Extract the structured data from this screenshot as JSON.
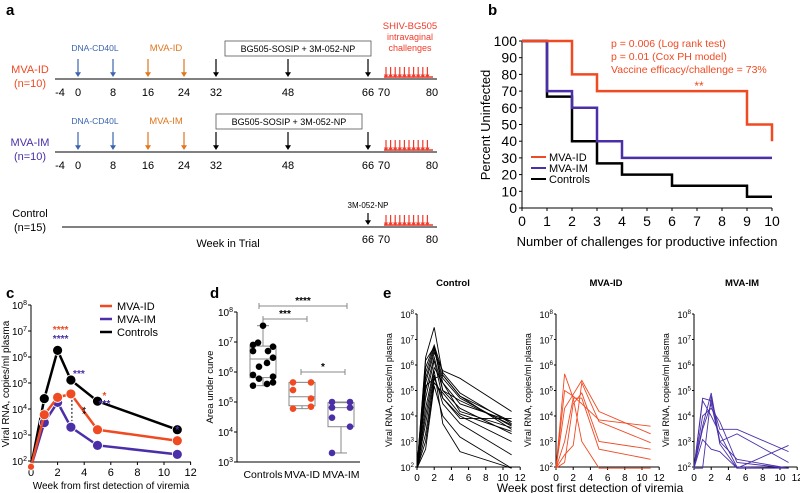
{
  "panel_labels": {
    "a": "a",
    "b": "b",
    "c": "c",
    "d": "d",
    "e": "e"
  },
  "colors": {
    "mva_id": "#f04a23",
    "mva_im": "#4a2fa8",
    "control": "#000000",
    "dna": "#3a64b0",
    "mva_arrow": "#e0761e",
    "challenge": "#f03a2a"
  },
  "panel_a": {
    "groups": [
      {
        "name": "MVA-ID",
        "n": "(n=10)",
        "color_key": "mva_id",
        "dna_label": "DNA-CD40L",
        "mva_label": "MVA-ID",
        "box_label": "BG505-SOSIP + 3M-052-NP",
        "challenge_label": [
          "SHIV-BG505",
          "intravaginal",
          "challenges"
        ]
      },
      {
        "name": "MVA-IM",
        "n": "(n=10)",
        "color_key": "mva_im",
        "dna_label": "DNA-CD40L",
        "mva_label": "MVA-IM",
        "box_label": "BG505-SOSIP + 3M-052-NP",
        "challenge_label": null
      },
      {
        "name": "Control",
        "n": "(n=15)",
        "color_key": "control",
        "boost_label": "3M-052-NP"
      }
    ],
    "week_ticks": [
      "-4",
      "0",
      "8",
      "16",
      "24",
      "32",
      "48",
      "66",
      "70",
      "80"
    ],
    "control_ticks": [
      "66",
      "70",
      "80"
    ],
    "dna_weeks": [
      0,
      8
    ],
    "mva_weeks": [
      16,
      24
    ],
    "protein_weeks": [
      32,
      48,
      66
    ],
    "challenge_weeks": [
      70,
      71,
      72,
      73,
      74,
      75,
      76,
      77,
      78,
      79,
      80
    ],
    "xlabel": "Week in Trial"
  },
  "chart_data": [
    {
      "id": "b",
      "type": "line",
      "step": true,
      "ylabel": "Percent Uninfected",
      "xlabel": "Number of challenges for productive infection",
      "xlim": [
        0,
        10
      ],
      "ylim": [
        0,
        100
      ],
      "xticks": [
        "0",
        "1",
        "2",
        "3",
        "4",
        "5",
        "6",
        "7",
        "8",
        "9",
        "10"
      ],
      "yticks": [
        "0",
        "10",
        "20",
        "30",
        "40",
        "50",
        "60",
        "70",
        "80",
        "90",
        "100"
      ],
      "annotations": [
        "p = 0.006 (Log rank test)",
        "p = 0.01 (Cox PH model)",
        "Vaccine efficacy/challenge = 73%",
        "**"
      ],
      "legend_position": "bottom-left",
      "series": [
        {
          "name": "MVA-ID",
          "color_key": "mva_id",
          "x": [
            0,
            2,
            2,
            3,
            3,
            9,
            9,
            10,
            10
          ],
          "y": [
            100,
            100,
            80,
            80,
            70,
            70,
            50,
            50,
            40
          ]
        },
        {
          "name": "MVA-IM",
          "color_key": "mva_im",
          "x": [
            0,
            1,
            1,
            2,
            2,
            3,
            3,
            4,
            4,
            10
          ],
          "y": [
            100,
            100,
            70,
            70,
            60,
            60,
            40,
            40,
            30,
            30
          ]
        },
        {
          "name": "Controls",
          "color_key": "control",
          "x": [
            0,
            1,
            1,
            2,
            2,
            3,
            3,
            4,
            4,
            6,
            6,
            9,
            9,
            10
          ],
          "y": [
            100,
            100,
            66.7,
            66.7,
            40,
            40,
            26.7,
            26.7,
            20,
            20,
            13.3,
            13.3,
            6.7,
            6.7
          ]
        }
      ]
    },
    {
      "id": "c",
      "type": "line",
      "yscale": "log",
      "ylabel": "Viral RNA, copies/ml plasma",
      "xlabel": "Week from first detection of viremia",
      "xlim": [
        0,
        12
      ],
      "ylim": [
        100,
        100000000
      ],
      "xticks": [
        "0",
        "2",
        "4",
        "6",
        "8",
        "10",
        "12"
      ],
      "yticks_exp": [
        "2",
        "3",
        "4",
        "5",
        "6",
        "7",
        "8"
      ],
      "legend_position": "top-right",
      "series": [
        {
          "name": "MVA-ID",
          "color_key": "mva_id",
          "x": [
            0,
            1,
            2,
            3,
            5,
            11
          ],
          "y": [
            60,
            6000,
            28000,
            38000,
            1600,
            600
          ]
        },
        {
          "name": "MVA-IM",
          "color_key": "mva_im",
          "x": [
            0,
            1,
            2,
            3,
            5,
            11
          ],
          "y": [
            60,
            3000,
            18000,
            2000,
            400,
            180
          ]
        },
        {
          "name": "Controls",
          "color_key": "control",
          "x": [
            0,
            1,
            2,
            3,
            5,
            11
          ],
          "y": [
            60,
            25000,
            1800000,
            130000,
            20000,
            1600
          ]
        }
      ],
      "significance": [
        {
          "x": 2,
          "text": "****",
          "color_key": "mva_id",
          "row": 0
        },
        {
          "x": 2,
          "text": "****",
          "color_key": "mva_im",
          "row": 1
        },
        {
          "x": 3,
          "text": "***",
          "color_key": "mva_im",
          "row": 0
        },
        {
          "x": 5,
          "text": "*",
          "color_key": "mva_id",
          "row": 0
        },
        {
          "x": 5,
          "text": "***",
          "color_key": "mva_im",
          "row": 1
        },
        {
          "x": 11,
          "text": "*",
          "color_key": "mva_im",
          "row": 0
        },
        {
          "x": 3,
          "text": "**",
          "color_key": "control",
          "row": 2
        }
      ]
    },
    {
      "id": "d",
      "type": "scatter",
      "subtype": "box",
      "yscale": "log",
      "ylabel": "Area under curve",
      "categories": [
        "Controls",
        "MVA-ID",
        "MVA-IM"
      ],
      "ylim": [
        1000,
        100000000
      ],
      "yticks_exp": [
        "3",
        "4",
        "5",
        "6",
        "7",
        "8"
      ],
      "groups": [
        {
          "name": "Controls",
          "color_key": "control",
          "values": [
            35000000,
            8000000,
            7000000,
            9500000,
            5000000,
            5000000,
            3000000,
            1500000,
            2000000,
            800000,
            700000,
            600000,
            400000,
            350000,
            450000
          ],
          "box": {
            "min": 350000,
            "q1": 650000,
            "median": 2700000,
            "q3": 7300000,
            "max": 35000000
          }
        },
        {
          "name": "MVA-ID",
          "color_key": "mva_id",
          "values": [
            450000,
            450000,
            250000,
            130000,
            60000,
            70000
          ],
          "box": {
            "min": 60000,
            "q1": 75000,
            "median": 150000,
            "q3": 450000,
            "max": 450000
          }
        },
        {
          "name": "MVA-IM",
          "color_key": "mva_im",
          "values": [
            100000,
            100000,
            65000,
            65000,
            30000,
            15000,
            2000
          ],
          "box": {
            "min": 2000,
            "q1": 15000,
            "median": 65000,
            "q3": 95000,
            "max": 100000
          }
        }
      ],
      "brackets": [
        {
          "from": "Controls",
          "to": "MVA-IM",
          "text": "****"
        },
        {
          "from": "Controls",
          "to": "MVA-ID",
          "text": "***"
        },
        {
          "from": "MVA-ID",
          "to": "MVA-IM",
          "text": "*"
        }
      ]
    },
    {
      "id": "e",
      "type": "line",
      "yscale": "log",
      "ylabel": "Viral RNA, copies/ml plasma",
      "xlabel": "Week post first detection of viremia",
      "xlim": [
        0,
        12
      ],
      "ylim": [
        100,
        100000000
      ],
      "xticks": [
        "0",
        "2",
        "4",
        "6",
        "8",
        "10",
        "12"
      ],
      "yticks_exp": [
        "2",
        "3",
        "4",
        "5",
        "6",
        "7",
        "8"
      ],
      "panels": [
        {
          "title": "Control",
          "color_key": "control",
          "series": [
            {
              "x": [
                0,
                1,
                2,
                3,
                5,
                11
              ],
              "y": [
                60,
                2000000,
                30000000,
                400000,
                60000,
                3000
              ]
            },
            {
              "x": [
                0,
                1,
                2,
                3,
                5,
                11
              ],
              "y": [
                60,
                800000,
                6000000,
                500000,
                80000,
                5000
              ]
            },
            {
              "x": [
                0,
                1,
                2,
                3,
                5,
                11
              ],
              "y": [
                60,
                500000,
                5000000,
                300000,
                50000,
                4000
              ]
            },
            {
              "x": [
                0,
                1,
                2,
                3,
                5,
                11
              ],
              "y": [
                60,
                300000,
                4000000,
                200000,
                30000,
                6000
              ]
            },
            {
              "x": [
                0,
                1,
                2,
                3,
                5,
                11
              ],
              "y": [
                60,
                200000,
                3000000,
                600000,
                300000,
                15000
              ]
            },
            {
              "x": [
                0,
                1,
                2,
                3,
                5,
                11
              ],
              "y": [
                60,
                100000,
                2000000,
                100000,
                20000,
                2000
              ]
            },
            {
              "x": [
                0,
                1,
                2,
                3,
                5,
                11
              ],
              "y": [
                60,
                50000,
                1500000,
                50000,
                10000,
                1000
              ]
            },
            {
              "x": [
                0,
                1,
                2,
                3,
                5,
                11
              ],
              "y": [
                60,
                20000,
                800000,
                200000,
                15000,
                3500
              ]
            },
            {
              "x": [
                0,
                1,
                2,
                3,
                5,
                11
              ],
              "y": [
                60,
                10000,
                600000,
                5000,
                400,
                60
              ]
            },
            {
              "x": [
                0,
                1,
                2,
                3,
                5,
                11
              ],
              "y": [
                60,
                5000,
                400000,
                30000,
                5000,
                300
              ]
            },
            {
              "x": [
                0,
                1,
                2,
                3,
                5,
                11
              ],
              "y": [
                60,
                2000,
                300000,
                50000,
                8000,
                8000
              ]
            },
            {
              "x": [
                0,
                1,
                2,
                3,
                5,
                11
              ],
              "y": [
                60,
                1000,
                200000,
                80000,
                12000,
                2500
              ]
            },
            {
              "x": [
                0,
                1,
                2,
                3,
                5,
                11
              ],
              "y": [
                60,
                500,
                150000,
                10000,
                1500,
                70
              ]
            },
            {
              "x": [
                0,
                1,
                2,
                3,
                5,
                11
              ],
              "y": [
                60,
                150000,
                300000,
                400000,
                60000,
                6000
              ]
            },
            {
              "x": [
                0,
                1,
                2,
                3,
                5,
                11
              ],
              "y": [
                60,
                1500000,
                5000000,
                100000,
                40000,
                4500
              ]
            }
          ]
        },
        {
          "title": "MVA-ID",
          "color_key": "mva_id",
          "series": [
            {
              "x": [
                0,
                1,
                2,
                3,
                5,
                11
              ],
              "y": [
                60,
                450000,
                50000,
                1000,
                60,
                60
              ]
            },
            {
              "x": [
                0,
                1,
                2,
                3,
                5,
                11
              ],
              "y": [
                60,
                100000,
                60000,
                30000,
                7000,
                4000
              ]
            },
            {
              "x": [
                0,
                1,
                2,
                3,
                5,
                11
              ],
              "y": [
                60,
                20000,
                70000,
                250000,
                15000,
                2000
              ]
            },
            {
              "x": [
                0,
                1,
                2,
                3,
                5,
                11
              ],
              "y": [
                60,
                300,
                700,
                200000,
                6000,
                900
              ]
            },
            {
              "x": [
                0,
                1,
                2,
                3,
                5,
                11
              ],
              "y": [
                60,
                150,
                30000,
                80000,
                1000,
                500
              ]
            },
            {
              "x": [
                0,
                1,
                2,
                3,
                5,
                11
              ],
              "y": [
                60,
                1000,
                50000,
                50000,
                500,
                200
              ]
            }
          ]
        },
        {
          "title": "MVA-IM",
          "color_key": "mva_im",
          "series": [
            {
              "x": [
                0,
                1,
                2,
                3,
                5,
                11
              ],
              "y": [
                60,
                50000,
                40000,
                3000,
                3000,
                400
              ]
            },
            {
              "x": [
                0,
                1,
                2,
                3,
                5,
                11
              ],
              "y": [
                60,
                4000,
                80000,
                1000,
                2000,
                150
              ]
            },
            {
              "x": [
                0,
                1,
                2,
                3,
                5,
                11
              ],
              "y": [
                60,
                1200,
                500,
                400,
                60,
                60
              ]
            },
            {
              "x": [
                0,
                1,
                2,
                3,
                5,
                11
              ],
              "y": [
                60,
                60,
                60000,
                800,
                70,
                700
              ]
            },
            {
              "x": [
                0,
                1,
                2,
                3,
                5,
                11
              ],
              "y": [
                60,
                10000,
                20000,
                6000,
                150,
                60
              ]
            },
            {
              "x": [
                0,
                1,
                2,
                3,
                5,
                11
              ],
              "y": [
                60,
                3000,
                30000,
                1000,
                200,
                80
              ]
            },
            {
              "x": [
                0,
                1,
                2,
                3,
                5,
                11
              ],
              "y": [
                60,
                40000,
                10000,
                2000,
                100,
                60
              ]
            }
          ]
        }
      ]
    }
  ]
}
